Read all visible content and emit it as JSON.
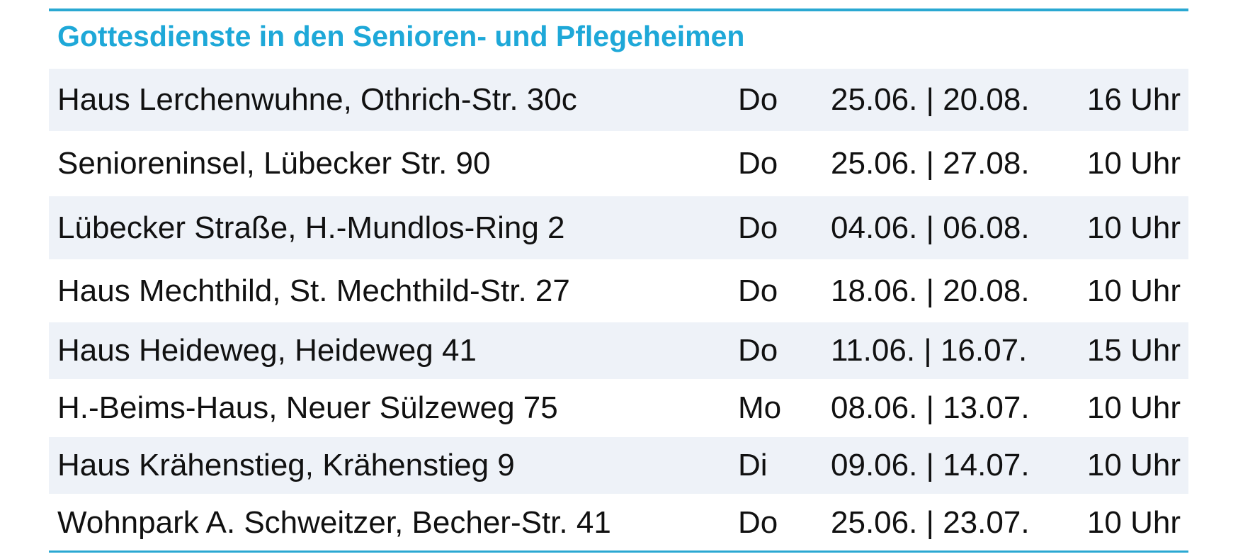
{
  "title": "Gottesdienste in den Senioren- und Pflegeheimen",
  "table": {
    "rows": [
      [
        "Haus Lerchenwuhne, Othrich-Str. 30c",
        "Do",
        "25.06. | 20.08.",
        "16 Uhr"
      ],
      [
        "Senioreninsel, Lübecker Str. 90",
        "Do",
        "25.06. | 27.08.",
        "10 Uhr"
      ],
      [
        "Lübecker Straße, H.-Mundlos-Ring 2",
        "Do",
        "04.06. | 06.08.",
        "10 Uhr"
      ],
      [
        "Haus Mechthild, St. Mechthild-Str. 27",
        "Do",
        "18.06. | 20.08.",
        "10 Uhr"
      ],
      [
        "Haus Heideweg, Heideweg 41",
        "Do",
        "11.06. | 16.07.",
        "15 Uhr"
      ],
      [
        "H.-Beims-Haus, Neuer Sülzeweg 75",
        "Mo",
        "08.06. | 13.07.",
        "10 Uhr"
      ],
      [
        "Haus Krähenstieg, Krähenstieg 9",
        "Di",
        "09.06. | 14.07.",
        "10 Uhr"
      ],
      [
        "Wohnpark A. Schweitzer, Becher-Str. 41",
        "Do",
        "25.06. | 23.07.",
        "10 Uhr"
      ]
    ]
  }
}
